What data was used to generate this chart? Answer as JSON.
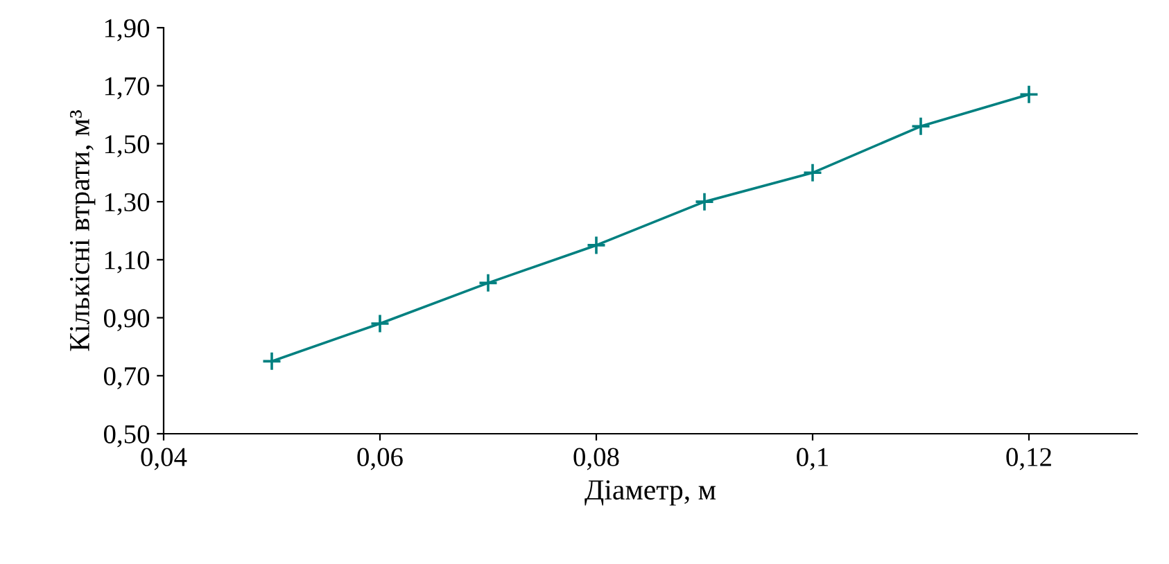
{
  "chart_data": {
    "type": "line",
    "xlabel": "Діаметр, м",
    "ylabel": "Кількісні втрати, м³",
    "x": [
      0.05,
      0.06,
      0.07,
      0.08,
      0.09,
      0.1,
      0.11,
      0.12
    ],
    "series": [
      {
        "color": "#008080",
        "values": [
          0.75,
          0.88,
          1.02,
          1.15,
          1.3,
          1.4,
          1.56,
          1.67
        ]
      }
    ],
    "marker": "cross",
    "line_style": "solid",
    "grid": false,
    "legend": false,
    "xlim": [
      0.04,
      0.13
    ],
    "xticks": [
      {
        "value": 0.04,
        "label": "0,04"
      },
      {
        "value": 0.06,
        "label": "0,06"
      },
      {
        "value": 0.08,
        "label": "0,08"
      },
      {
        "value": 0.1,
        "label": "0,1"
      },
      {
        "value": 0.12,
        "label": "0,12"
      }
    ],
    "ylim": [
      0.5,
      1.9
    ],
    "yticks": [
      {
        "value": 0.5,
        "label": "0,50"
      },
      {
        "value": 0.7,
        "label": "0,70"
      },
      {
        "value": 0.9,
        "label": "0,90"
      },
      {
        "value": 1.1,
        "label": "1,10"
      },
      {
        "value": 1.3,
        "label": "1,30"
      },
      {
        "value": 1.5,
        "label": "1,50"
      },
      {
        "value": 1.7,
        "label": "1,70"
      },
      {
        "value": 1.9,
        "label": "1,90"
      }
    ]
  }
}
